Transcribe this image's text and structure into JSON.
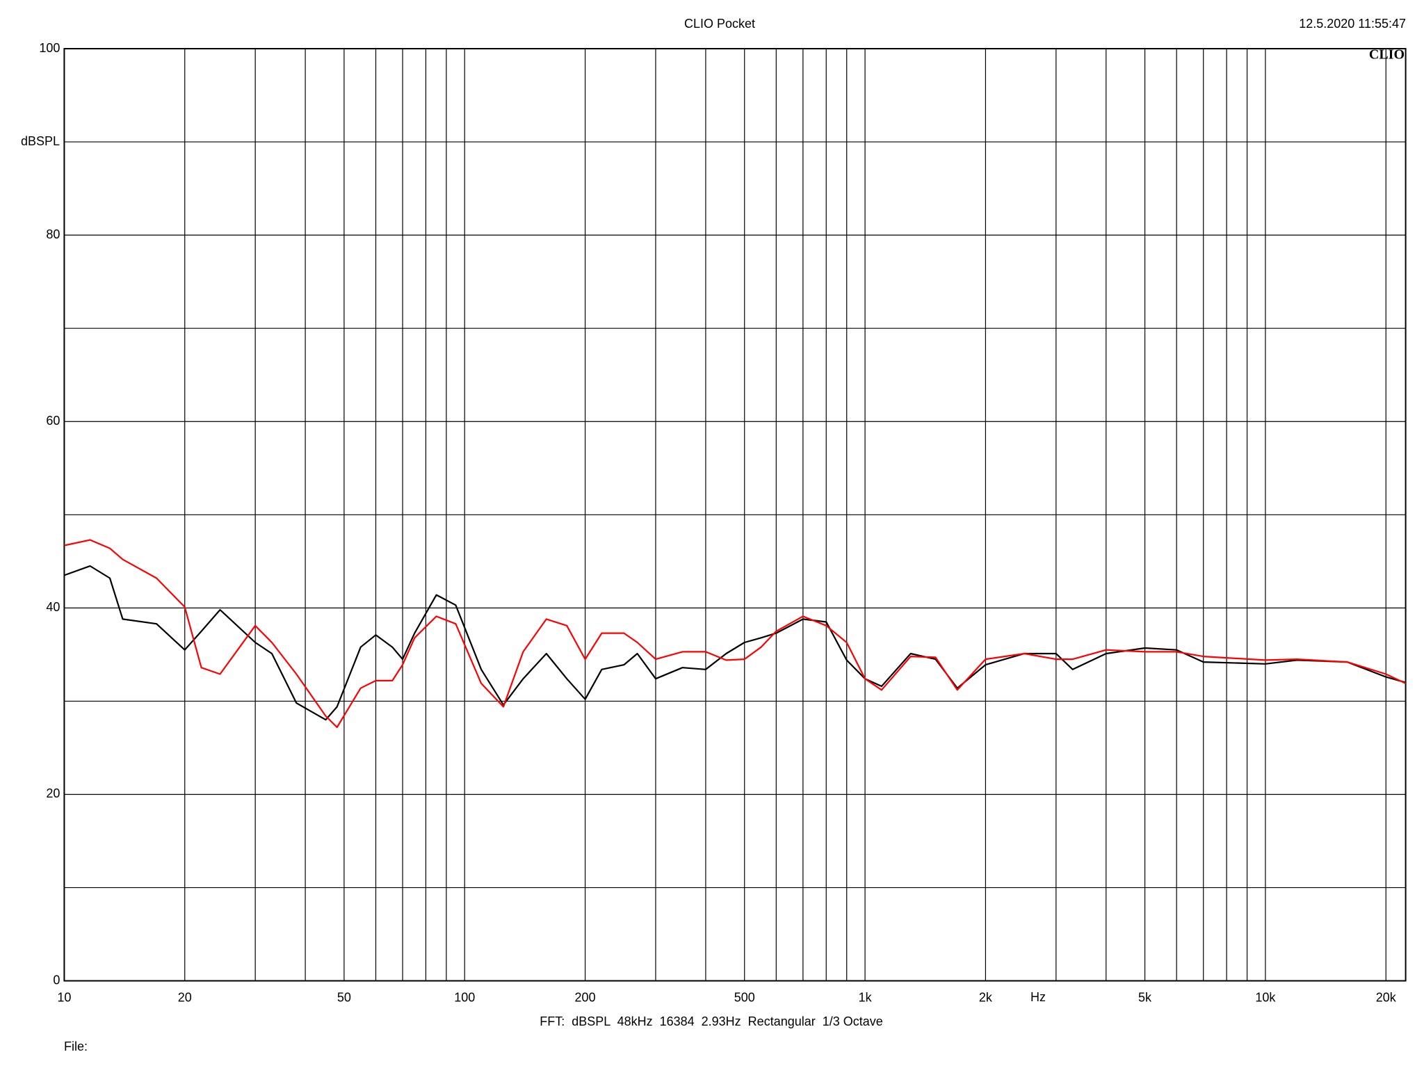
{
  "chart_data": {
    "type": "line",
    "title": "CLIO Pocket",
    "timestamp": "12.5.2020 11:55:47",
    "logo": "CLIO",
    "y_label": "dBSPL",
    "x_label": "Hz",
    "footer": "FFT:  dBSPL  48kHz  16384  2.93Hz  Rectangular  1/3 Octave",
    "file_label": "File:",
    "x_log": true,
    "grid": true,
    "xlim": [
      10,
      22400
    ],
    "ylim": [
      0,
      100
    ],
    "xticks": [
      10,
      20,
      50,
      100,
      200,
      500,
      {
        "value": 1000,
        "label": "1k"
      },
      {
        "value": 2000,
        "label": "2k"
      },
      {
        "value": 5000,
        "label": "5k"
      },
      {
        "value": 10000,
        "label": "10k"
      },
      {
        "value": 20000,
        "label": "20k"
      }
    ],
    "x_minor_ticks": [
      30,
      40,
      60,
      70,
      80,
      90,
      300,
      400,
      600,
      700,
      800,
      900,
      3000,
      4000,
      6000,
      7000,
      8000,
      9000
    ],
    "yticks": [
      0,
      20,
      40,
      60,
      80,
      100
    ],
    "y_minor_ticks": [
      10,
      30,
      50,
      70,
      90
    ],
    "x": [
      10,
      11.6,
      13,
      14,
      17,
      20,
      22,
      24.5,
      30,
      33,
      38,
      45,
      48,
      55,
      60,
      66,
      70,
      75,
      85,
      95,
      110,
      125,
      140,
      160,
      180,
      200,
      220,
      250,
      270,
      300,
      350,
      400,
      450,
      500,
      550,
      600,
      700,
      800,
      900,
      1000,
      1100,
      1300,
      1500,
      1700,
      2000,
      2500,
      3000,
      3300,
      4000,
      5000,
      6000,
      7000,
      10000,
      12000,
      16000,
      20000,
      22400
    ],
    "series": [
      {
        "name": "Black trace",
        "color": "#000000",
        "values": [
          43.5,
          44.5,
          43.2,
          38.8,
          38.3,
          35.5,
          37.5,
          39.8,
          36.3,
          35.1,
          29.8,
          28,
          29.4,
          35.8,
          37.1,
          35.8,
          34.5,
          37.3,
          41.4,
          40.3,
          33.4,
          29.6,
          32.4,
          35.1,
          32.4,
          30.2,
          33.4,
          33.9,
          35.1,
          32.4,
          33.6,
          33.4,
          35.1,
          36.3,
          36.8,
          37.3,
          38.8,
          38.5,
          34.4,
          32.4,
          31.6,
          35.1,
          34.5,
          31.4,
          33.9,
          35.1,
          35.1,
          33.4,
          35.1,
          35.7,
          35.5,
          34.2,
          34,
          34.4,
          34.2,
          32.6,
          32
        ]
      },
      {
        "name": "Red trace",
        "color": "#ff0000",
        "values": [
          46.7,
          47.3,
          46.4,
          45.2,
          43.2,
          40.1,
          33.6,
          32.9,
          38.1,
          36.3,
          32.9,
          28.4,
          27.2,
          31.4,
          32.2,
          32.2,
          33.9,
          36.8,
          39.1,
          38.3,
          31.9,
          29.4,
          35.3,
          38.8,
          38.1,
          34.5,
          37.3,
          37.3,
          36.3,
          34.5,
          35.3,
          35.3,
          34.4,
          34.5,
          35.8,
          37.5,
          39.1,
          38.1,
          36.3,
          32.4,
          31.2,
          34.8,
          34.7,
          31.2,
          34.5,
          35.1,
          34.5,
          34.5,
          35.5,
          35.3,
          35.3,
          34.8,
          34.4,
          34.5,
          34.2,
          32.9,
          31.9
        ]
      }
    ]
  }
}
